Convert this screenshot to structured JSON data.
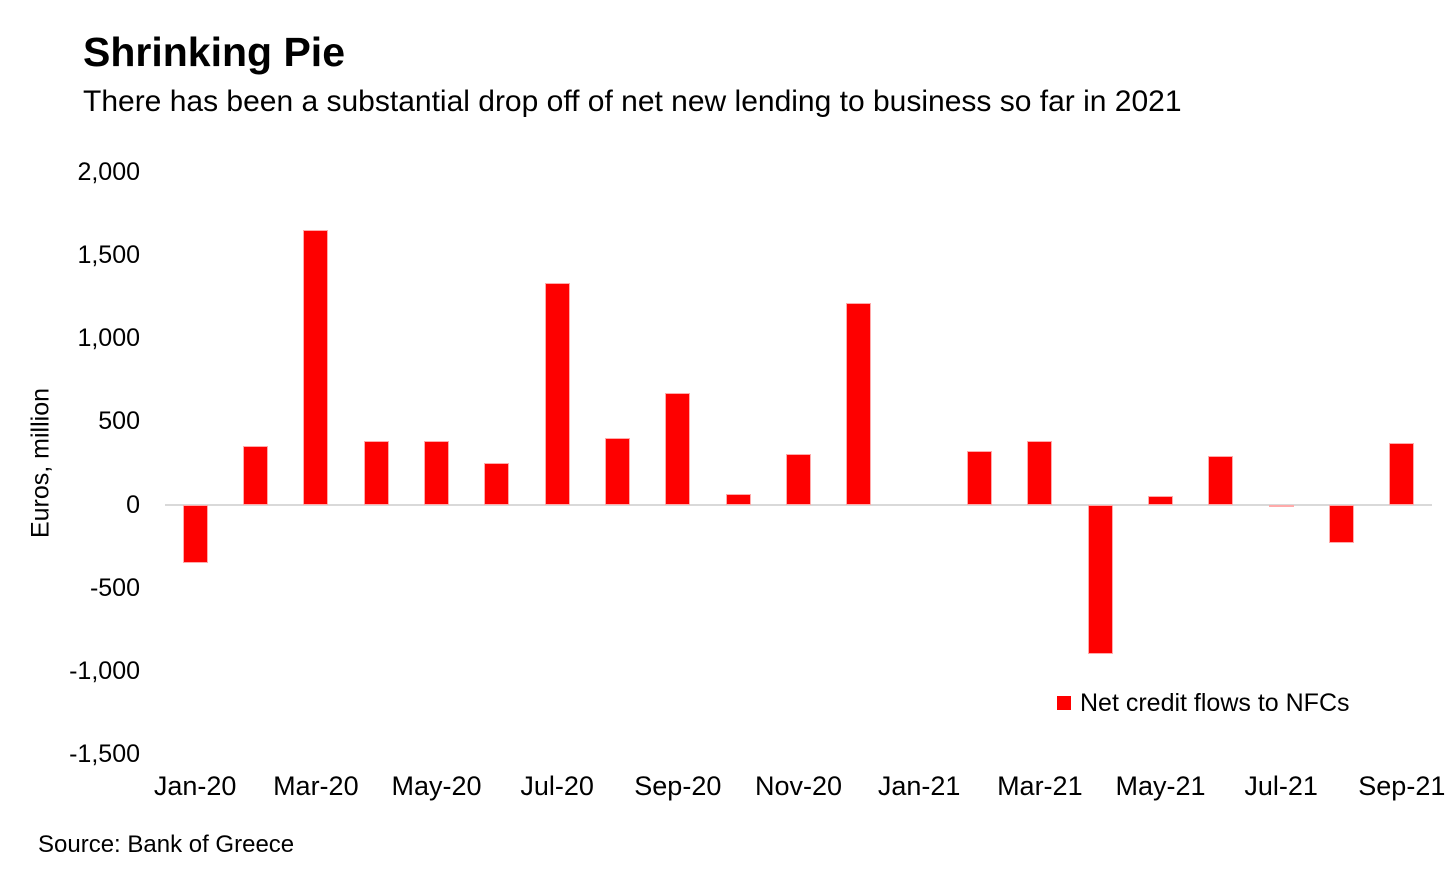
{
  "header": {
    "title": "Shrinking Pie",
    "subtitle": "There has been a substantial drop off of net new lending to business so far in 2021"
  },
  "footer": {
    "source": "Source: Bank of Greece"
  },
  "chart_data": {
    "type": "bar",
    "title": "Shrinking Pie",
    "subtitle": "There has been a substantial drop off of net new lending to business so far in 2021",
    "xlabel": "",
    "ylabel": "Euros, million",
    "legend": "Net credit flows to NFCs",
    "legend_position": "inside right, below zero line",
    "grid": "off (zero axis line only)",
    "bar_color": "#fe0000",
    "zero_line_color": "#d9d9d9",
    "ylim": [
      -1500,
      2000
    ],
    "ytick_values": [
      2000,
      1500,
      1000,
      500,
      0,
      -500,
      -1000,
      -1500
    ],
    "ytick_labels": [
      "2,000",
      "1,500",
      "1,000",
      "500",
      "0",
      "-500",
      "-1,000",
      "-1,500"
    ],
    "categories": [
      "Jan-20",
      "Feb-20",
      "Mar-20",
      "Apr-20",
      "May-20",
      "Jun-20",
      "Jul-20",
      "Aug-20",
      "Sep-20",
      "Oct-20",
      "Nov-20",
      "Dec-20",
      "Jan-21",
      "Feb-21",
      "Mar-21",
      "Apr-21",
      "May-21",
      "Jun-21",
      "Jul-21",
      "Aug-21",
      "Sep-21"
    ],
    "xtick_labels": [
      "Jan-20",
      "Mar-20",
      "May-20",
      "Jul-20",
      "Sep-20",
      "Nov-20",
      "Jan-21",
      "Mar-21",
      "May-21",
      "Jul-21",
      "Sep-21"
    ],
    "values": [
      -350,
      355,
      1650,
      385,
      385,
      250,
      1335,
      400,
      670,
      65,
      305,
      1210,
      0,
      320,
      385,
      -900,
      50,
      295,
      -15,
      -230,
      370
    ]
  }
}
